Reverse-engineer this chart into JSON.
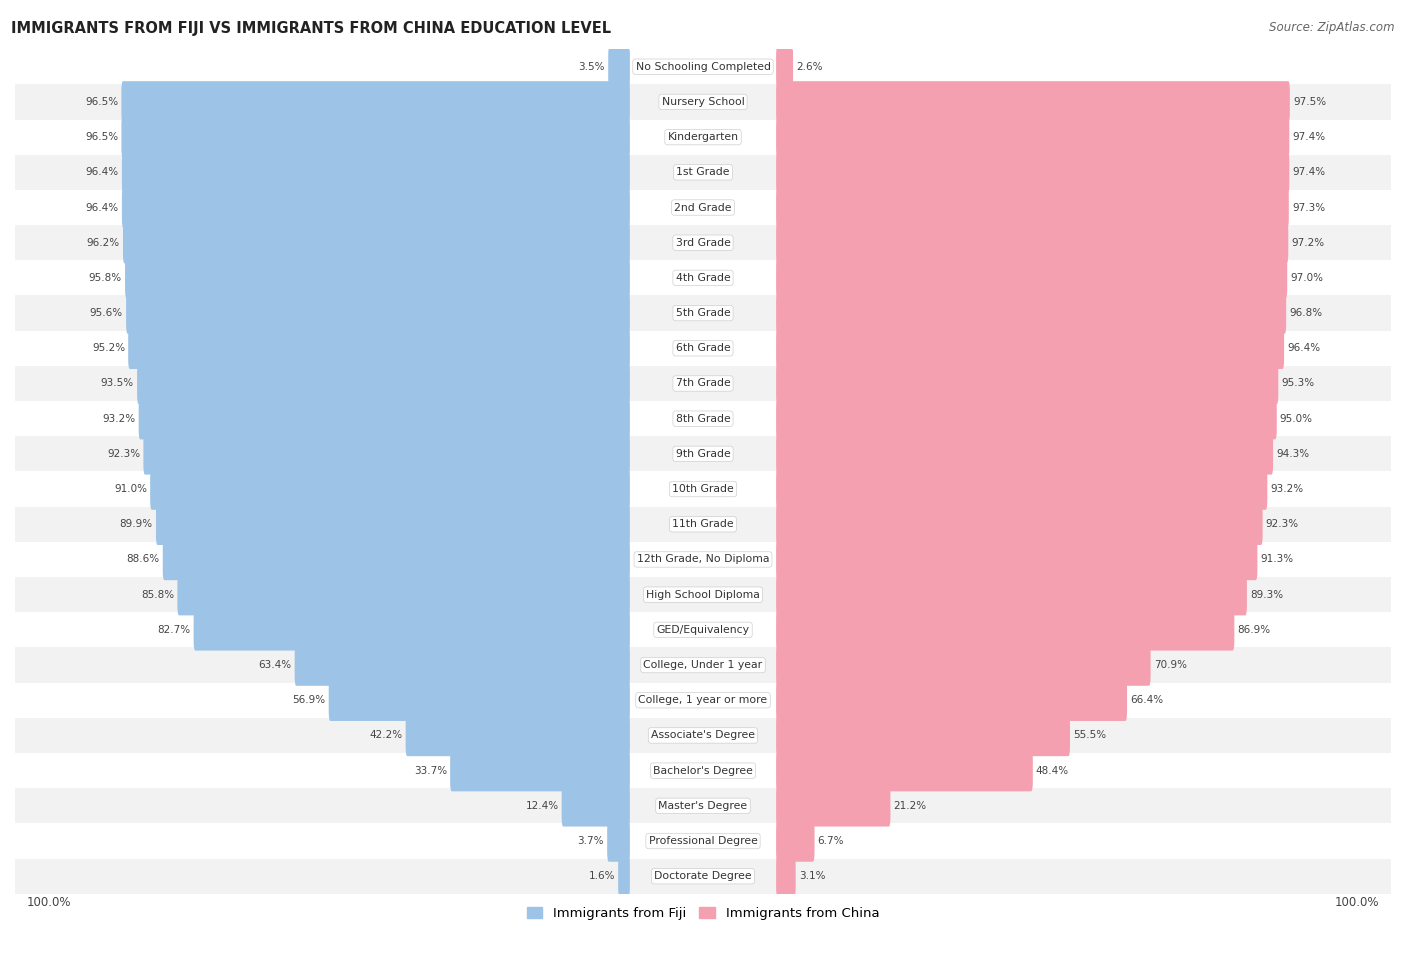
{
  "title": "IMMIGRANTS FROM FIJI VS IMMIGRANTS FROM CHINA EDUCATION LEVEL",
  "source": "Source: ZipAtlas.com",
  "fiji_color": "#9DC3E6",
  "china_color": "#F4A0B0",
  "bg_color": "#FFFFFF",
  "row_colors": [
    "#FFFFFF",
    "#F2F2F2"
  ],
  "categories": [
    "No Schooling Completed",
    "Nursery School",
    "Kindergarten",
    "1st Grade",
    "2nd Grade",
    "3rd Grade",
    "4th Grade",
    "5th Grade",
    "6th Grade",
    "7th Grade",
    "8th Grade",
    "9th Grade",
    "10th Grade",
    "11th Grade",
    "12th Grade, No Diploma",
    "High School Diploma",
    "GED/Equivalency",
    "College, Under 1 year",
    "College, 1 year or more",
    "Associate's Degree",
    "Bachelor's Degree",
    "Master's Degree",
    "Professional Degree",
    "Doctorate Degree"
  ],
  "fiji_values": [
    3.5,
    96.5,
    96.5,
    96.4,
    96.4,
    96.2,
    95.8,
    95.6,
    95.2,
    93.5,
    93.2,
    92.3,
    91.0,
    89.9,
    88.6,
    85.8,
    82.7,
    63.4,
    56.9,
    42.2,
    33.7,
    12.4,
    3.7,
    1.6
  ],
  "china_values": [
    2.6,
    97.5,
    97.4,
    97.4,
    97.3,
    97.2,
    97.0,
    96.8,
    96.4,
    95.3,
    95.0,
    94.3,
    93.2,
    92.3,
    91.3,
    89.3,
    86.9,
    70.9,
    66.4,
    55.5,
    48.4,
    21.2,
    6.7,
    3.1
  ],
  "legend_fiji": "Immigrants from Fiji",
  "legend_china": "Immigrants from China",
  "axis_label_left": "100.0%",
  "axis_label_right": "100.0%",
  "max_val": 100.0
}
